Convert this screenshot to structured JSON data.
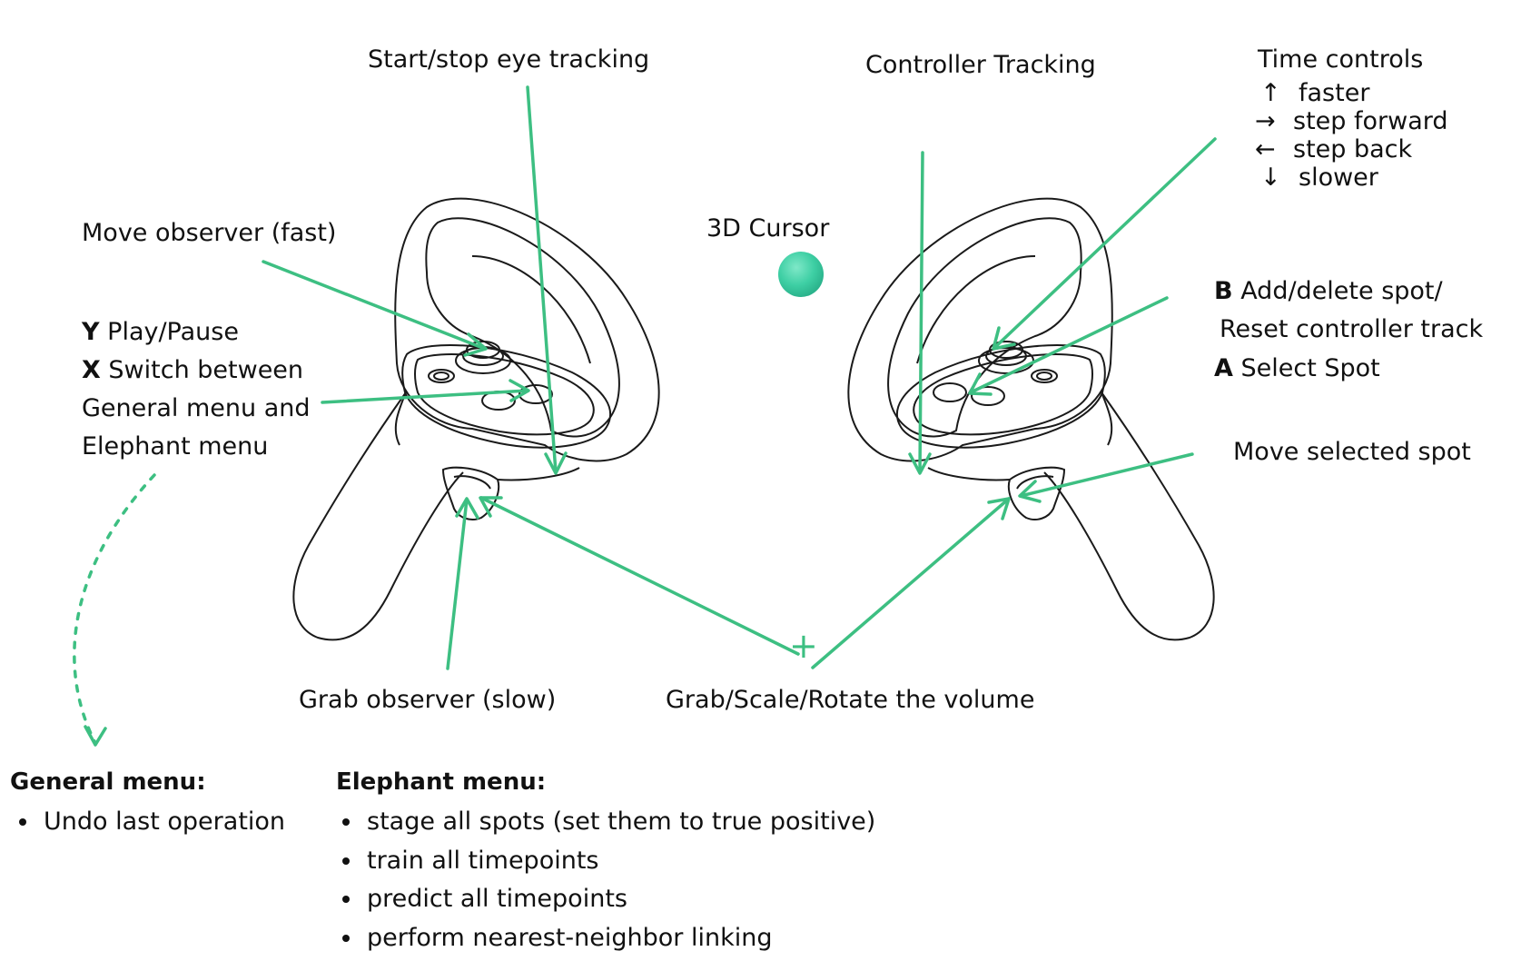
{
  "colors": {
    "accent": "#3dbf82",
    "cursor": "#3ecfa4",
    "outline": "#1a1a1a"
  },
  "labels": {
    "eye_tracking": "Start/stop eye tracking",
    "controller_tracking": "Controller Tracking",
    "move_observer_fast": "Move observer (fast)",
    "cursor_3d": "3D Cursor",
    "move_selected_spot": "Move selected spot",
    "grab_observer_slow": "Grab observer (slow)",
    "grab_scale_rotate": "Grab/Scale/Rotate the volume",
    "plus": "+"
  },
  "left_buttons": {
    "y_key": "Y",
    "y_text": "Play/Pause",
    "x_key": "X",
    "x_text": "Switch between",
    "x_text_2": "General menu and",
    "x_text_3": "Elephant menu"
  },
  "right_buttons": {
    "b_key": "B",
    "b_text": "Add/delete spot/",
    "b_text_2": "Reset controller track",
    "a_key": "A",
    "a_text": "Select Spot"
  },
  "time_controls": {
    "title": "Time controls",
    "items": [
      {
        "arrow": "↑",
        "label": "faster"
      },
      {
        "arrow": "→",
        "label": "step forward"
      },
      {
        "arrow": "←",
        "label": "step back"
      },
      {
        "arrow": "↓",
        "label": "slower"
      }
    ]
  },
  "general_menu": {
    "title": "General menu:",
    "items": [
      "Undo last operation"
    ]
  },
  "elephant_menu": {
    "title": "Elephant menu:",
    "items": [
      "stage all spots (set them to true positive)",
      "train all timepoints",
      "predict all timepoints",
      "perform nearest-neighbor linking"
    ]
  },
  "icons": {
    "left_controller": "left-vr-controller-icon",
    "right_controller": "right-vr-controller-icon",
    "cursor": "3d-cursor-sphere-icon"
  }
}
